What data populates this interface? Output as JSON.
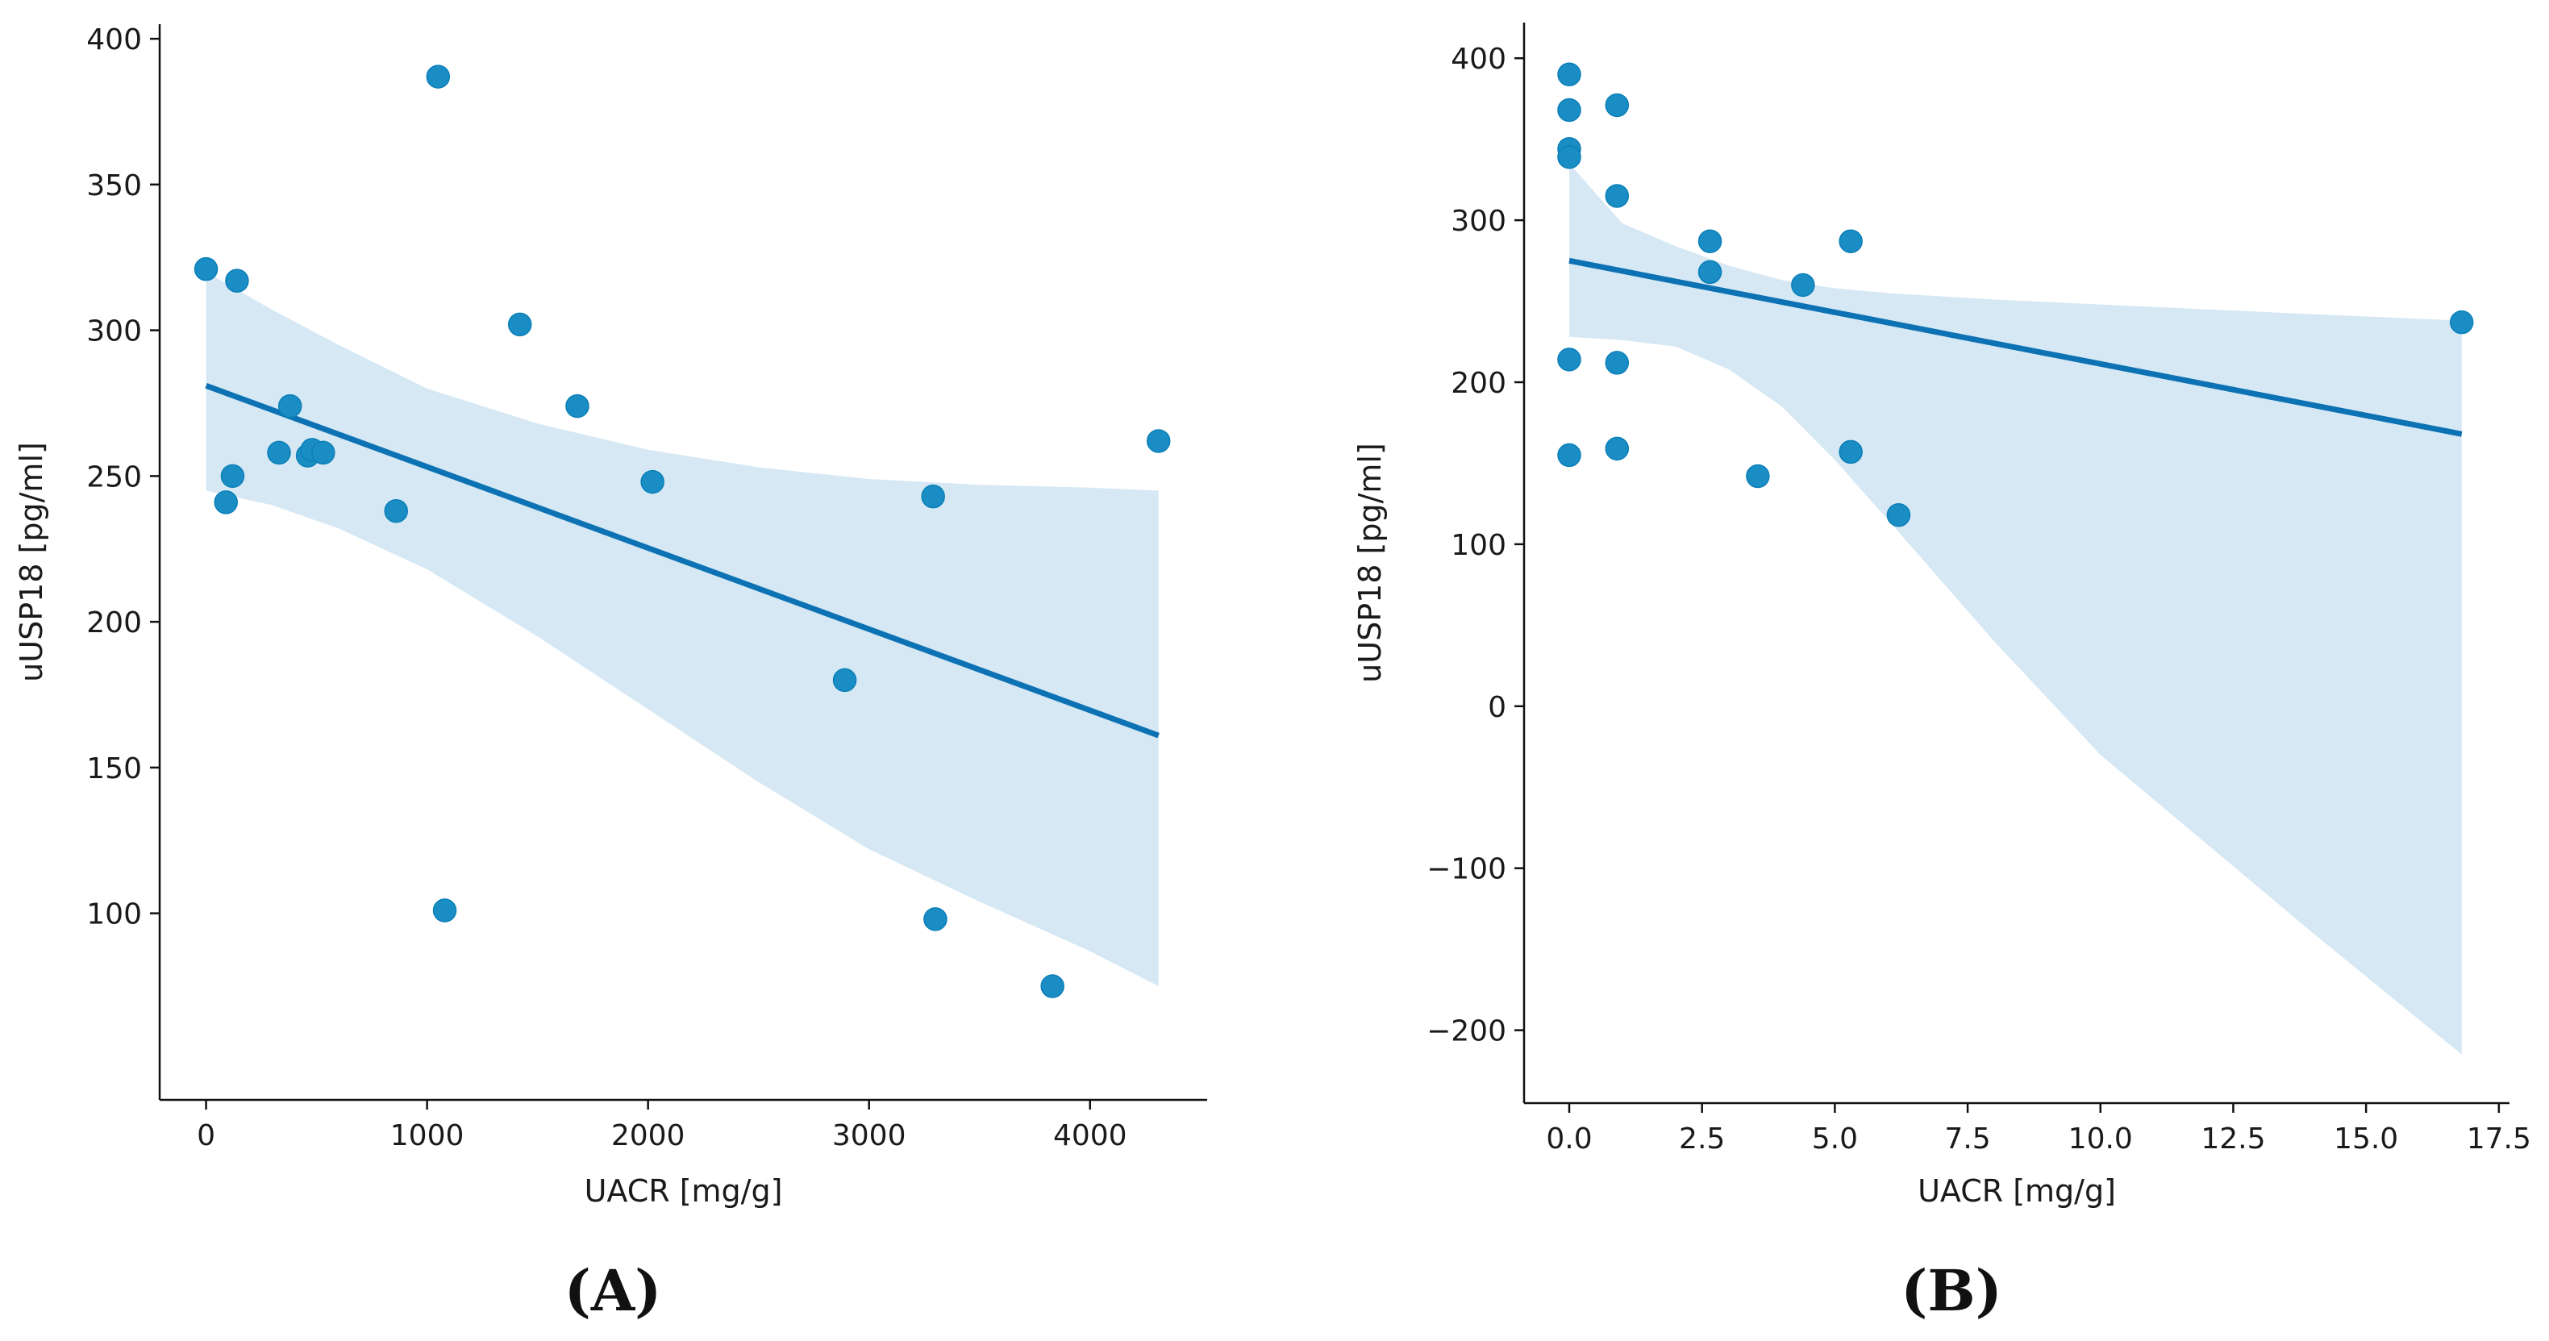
{
  "colors": {
    "point": "#1a8dc4",
    "line": "#0d72b4",
    "band": "#d5e8f4",
    "axis": "#111111"
  },
  "chart_data": [
    {
      "type": "scatter",
      "panel_label": "(A)",
      "title": "",
      "xlabel": "UACR [mg/g]",
      "ylabel": "uUSP18 [pg/ml]",
      "xlim": [
        -210,
        4530
      ],
      "ylim": [
        36,
        405
      ],
      "xticks": [
        0,
        1000,
        2000,
        3000,
        4000
      ],
      "xtick_labels": [
        "0",
        "1000",
        "2000",
        "3000",
        "4000"
      ],
      "yticks": [
        100,
        150,
        200,
        250,
        300,
        350,
        400
      ],
      "ytick_labels": [
        "100",
        "150",
        "200",
        "250",
        "300",
        "350",
        "400"
      ],
      "points": [
        {
          "x": 0,
          "y": 321
        },
        {
          "x": 140,
          "y": 317
        },
        {
          "x": 90,
          "y": 241
        },
        {
          "x": 120,
          "y": 250
        },
        {
          "x": 330,
          "y": 258
        },
        {
          "x": 380,
          "y": 274
        },
        {
          "x": 460,
          "y": 257
        },
        {
          "x": 480,
          "y": 259
        },
        {
          "x": 530,
          "y": 258
        },
        {
          "x": 860,
          "y": 238
        },
        {
          "x": 1050,
          "y": 387
        },
        {
          "x": 1080,
          "y": 101
        },
        {
          "x": 1420,
          "y": 302
        },
        {
          "x": 1680,
          "y": 274
        },
        {
          "x": 2020,
          "y": 248
        },
        {
          "x": 2890,
          "y": 180
        },
        {
          "x": 3290,
          "y": 243
        },
        {
          "x": 3300,
          "y": 98
        },
        {
          "x": 3830,
          "y": 75
        },
        {
          "x": 4310,
          "y": 262
        }
      ],
      "regression": {
        "x": [
          0,
          4310
        ],
        "y": [
          281,
          161
        ]
      },
      "ci_band": {
        "x": [
          0,
          300,
          600,
          1000,
          1500,
          2000,
          2500,
          3000,
          3500,
          4000,
          4310
        ],
        "upper": [
          320,
          307,
          295,
          280,
          268,
          259,
          253,
          249,
          247,
          246,
          245
        ],
        "lower": [
          245,
          240,
          232,
          218,
          195,
          170,
          145,
          122,
          104,
          87,
          75
        ]
      }
    },
    {
      "type": "scatter",
      "panel_label": "(B)",
      "title": "",
      "xlabel": "UACR [mg/g]",
      "ylabel": "uUSP18 [pg/ml]",
      "xlim": [
        -0.85,
        17.7
      ],
      "ylim": [
        -245,
        422
      ],
      "xticks": [
        0,
        2.5,
        5,
        7.5,
        10,
        12.5,
        15,
        17.5
      ],
      "xtick_labels": [
        "0.0",
        "2.5",
        "5.0",
        "7.5",
        "10.0",
        "12.5",
        "15.0",
        "17.5"
      ],
      "yticks": [
        -200,
        -100,
        0,
        100,
        200,
        300,
        400
      ],
      "ytick_labels": [
        "−200",
        "−100",
        "0",
        "100",
        "200",
        "300",
        "400"
      ],
      "points": [
        {
          "x": 0,
          "y": 390
        },
        {
          "x": 0,
          "y": 368
        },
        {
          "x": 0,
          "y": 344
        },
        {
          "x": 0,
          "y": 339
        },
        {
          "x": 0,
          "y": 214
        },
        {
          "x": 0,
          "y": 155
        },
        {
          "x": 0.9,
          "y": 371
        },
        {
          "x": 0.9,
          "y": 315
        },
        {
          "x": 0.9,
          "y": 212
        },
        {
          "x": 0.9,
          "y": 159
        },
        {
          "x": 2.65,
          "y": 287
        },
        {
          "x": 2.65,
          "y": 268
        },
        {
          "x": 3.55,
          "y": 142
        },
        {
          "x": 4.4,
          "y": 260
        },
        {
          "x": 5.3,
          "y": 287
        },
        {
          "x": 5.3,
          "y": 157
        },
        {
          "x": 6.2,
          "y": 118
        },
        {
          "x": 16.8,
          "y": 237
        }
      ],
      "regression": {
        "x": [
          0,
          16.8
        ],
        "y": [
          275,
          168
        ]
      },
      "ci_band": {
        "x": [
          0,
          1,
          2,
          3,
          4,
          5,
          6,
          8,
          10,
          12,
          14,
          16.8
        ],
        "upper": [
          335,
          298,
          284,
          272,
          263,
          258,
          255,
          251,
          248,
          245,
          242,
          238
        ],
        "lower": [
          228,
          226,
          222,
          208,
          185,
          152,
          115,
          40,
          -30,
          -85,
          -140,
          -215
        ]
      }
    }
  ]
}
